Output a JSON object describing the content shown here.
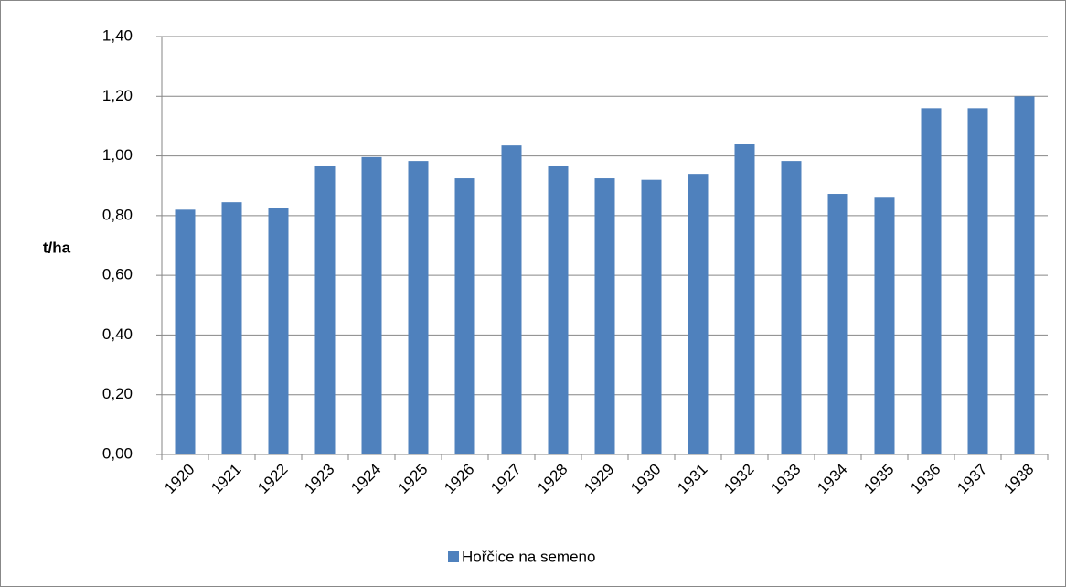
{
  "chart_data": {
    "type": "bar",
    "y_label": "t/ha",
    "categories": [
      "1920",
      "1921",
      "1922",
      "1923",
      "1924",
      "1925",
      "1926",
      "1927",
      "1928",
      "1929",
      "1930",
      "1931",
      "1932",
      "1933",
      "1934",
      "1935",
      "1936",
      "1937",
      "1938"
    ],
    "series": [
      {
        "name": "Hořčice na semeno",
        "color": "#4f81bd",
        "values": [
          0.82,
          0.845,
          0.827,
          0.965,
          0.996,
          0.983,
          0.925,
          1.035,
          0.965,
          0.925,
          0.92,
          0.94,
          1.04,
          0.983,
          0.873,
          0.86,
          1.16,
          1.16,
          1.2
        ]
      }
    ],
    "ylim": [
      0,
      1.4
    ],
    "yticks": [
      {
        "value": 0,
        "label": "0,00"
      },
      {
        "value": 0.2,
        "label": "0,20"
      },
      {
        "value": 0.4,
        "label": "0,40"
      },
      {
        "value": 0.6,
        "label": "0,60"
      },
      {
        "value": 0.8,
        "label": "0,80"
      },
      {
        "value": 1.0,
        "label": "1,00"
      },
      {
        "value": 1.2,
        "label": "1,20"
      },
      {
        "value": 1.4,
        "label": "1,40"
      }
    ],
    "grid": true,
    "legend": "bottom"
  }
}
